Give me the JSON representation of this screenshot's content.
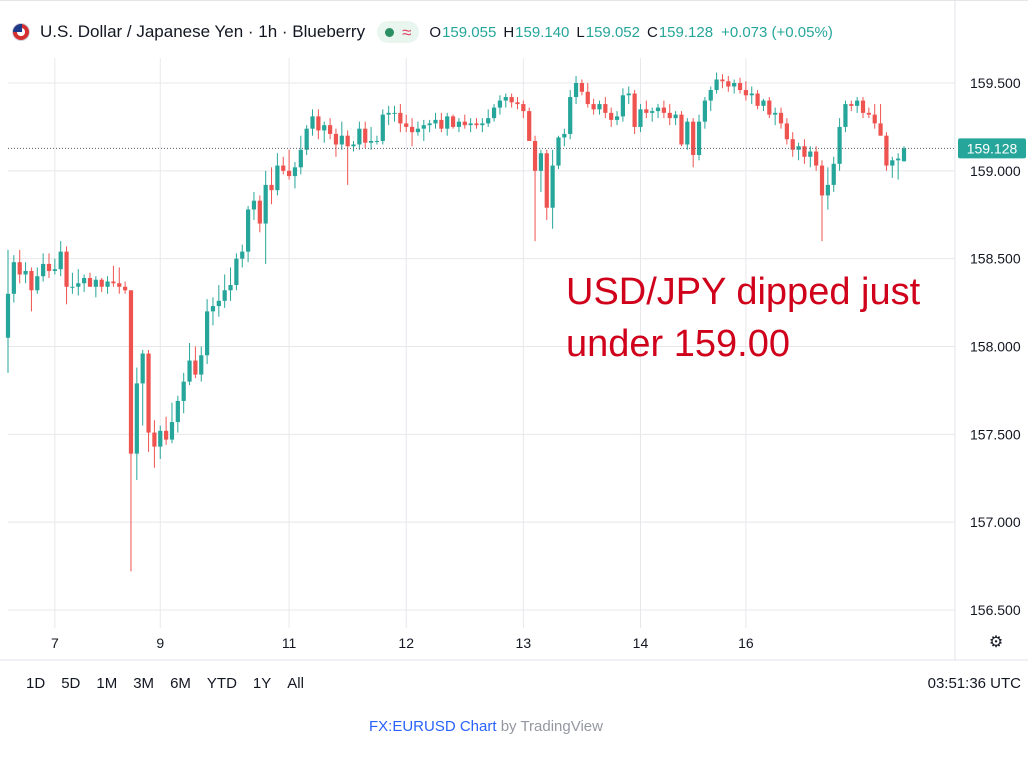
{
  "header": {
    "title": "U.S. Dollar / Japanese Yen · 1h · Blueberry",
    "flag_icon": "us-flag-icon",
    "status_icon": "live-dot-icon",
    "wave_icon": "wave-icon",
    "ohlc": {
      "o_label": "O",
      "o_value": "159.055",
      "h_label": "H",
      "h_value": "159.140",
      "l_label": "L",
      "l_value": "159.052",
      "c_label": "C",
      "c_value": "159.128",
      "change": "+0.073 (+0.05%)"
    }
  },
  "annotation": "USD/JPY dipped just under 159.00",
  "toolbar": {
    "timeframes": [
      "1D",
      "5D",
      "1M",
      "3M",
      "6M",
      "YTD",
      "1Y",
      "All"
    ],
    "clock": "03:51:36 UTC"
  },
  "settings_icon": "settings-icon",
  "attribution": {
    "link_text": "FX:EURUSD Chart",
    "by_text": " by TradingView"
  },
  "colors": {
    "up": "#26a69a",
    "down": "#ef5350",
    "grid": "#e8e8ec",
    "annotation": "#d0021b",
    "price_label": "#26a69a"
  },
  "chart_data": {
    "type": "candlestick",
    "title": "U.S. Dollar / Japanese Yen · 1h · Blueberry",
    "ylim": [
      156.3,
      159.8
    ],
    "y_ticks": [
      "159.500",
      "159.000",
      "158.500",
      "158.000",
      "157.500",
      "157.000",
      "156.500"
    ],
    "y_tick_values": [
      159.5,
      159.0,
      158.5,
      158.0,
      157.5,
      157.0,
      156.5
    ],
    "x_ticks": [
      "7",
      "9",
      "11",
      "12",
      "13",
      "14",
      "16"
    ],
    "last_price_label": "159.128",
    "last_price": 159.128,
    "grid": true,
    "candles": [
      [
        158.05,
        158.55,
        157.85,
        158.3
      ],
      [
        158.3,
        158.52,
        158.25,
        158.48
      ],
      [
        158.48,
        158.55,
        158.36,
        158.41
      ],
      [
        158.41,
        158.48,
        158.36,
        158.43
      ],
      [
        158.43,
        158.45,
        158.2,
        158.32
      ],
      [
        158.32,
        158.45,
        158.3,
        158.4
      ],
      [
        158.4,
        158.53,
        158.37,
        158.47
      ],
      [
        158.47,
        158.53,
        158.39,
        158.43
      ],
      [
        158.43,
        158.5,
        158.41,
        158.44
      ],
      [
        158.44,
        158.6,
        158.4,
        158.54
      ],
      [
        158.54,
        158.57,
        158.24,
        158.34
      ],
      [
        158.34,
        158.42,
        158.3,
        158.34
      ],
      [
        158.34,
        158.44,
        158.29,
        158.36
      ],
      [
        158.36,
        158.41,
        158.31,
        158.39
      ],
      [
        158.39,
        158.42,
        158.34,
        158.34
      ],
      [
        158.34,
        158.4,
        158.28,
        158.38
      ],
      [
        158.38,
        158.39,
        158.31,
        158.34
      ],
      [
        158.34,
        158.4,
        158.3,
        158.37
      ],
      [
        158.37,
        158.46,
        158.34,
        158.36
      ],
      [
        158.36,
        158.45,
        158.3,
        158.34
      ],
      [
        158.34,
        158.37,
        158.3,
        158.32
      ],
      [
        158.32,
        158.32,
        156.72,
        157.39
      ],
      [
        157.39,
        157.88,
        157.24,
        157.79
      ],
      [
        157.79,
        157.98,
        157.55,
        157.96
      ],
      [
        157.96,
        157.98,
        157.4,
        157.51
      ],
      [
        157.51,
        157.58,
        157.31,
        157.43
      ],
      [
        157.43,
        157.55,
        157.36,
        157.52
      ],
      [
        157.52,
        157.6,
        157.44,
        157.47
      ],
      [
        157.47,
        157.68,
        157.45,
        157.57
      ],
      [
        157.57,
        157.72,
        157.51,
        157.69
      ],
      [
        157.69,
        157.85,
        157.62,
        157.8
      ],
      [
        157.8,
        158.02,
        157.78,
        157.92
      ],
      [
        157.92,
        158.0,
        157.82,
        157.84
      ],
      [
        157.84,
        158.0,
        157.8,
        157.95
      ],
      [
        157.95,
        158.27,
        157.9,
        158.2
      ],
      [
        158.2,
        158.28,
        158.12,
        158.23
      ],
      [
        158.23,
        158.35,
        158.17,
        158.26
      ],
      [
        158.26,
        158.41,
        158.22,
        158.32
      ],
      [
        158.32,
        158.45,
        158.26,
        158.35
      ],
      [
        158.35,
        158.53,
        158.32,
        158.5
      ],
      [
        158.5,
        158.58,
        158.45,
        158.54
      ],
      [
        158.54,
        158.8,
        158.48,
        158.78
      ],
      [
        158.78,
        158.88,
        158.72,
        158.83
      ],
      [
        158.83,
        158.86,
        158.65,
        158.7
      ],
      [
        158.7,
        159.0,
        158.47,
        158.92
      ],
      [
        158.92,
        159.02,
        158.81,
        158.89
      ],
      [
        158.89,
        159.1,
        158.86,
        159.03
      ],
      [
        159.03,
        159.08,
        158.98,
        159.0
      ],
      [
        159.0,
        159.12,
        158.95,
        158.97
      ],
      [
        158.97,
        159.05,
        158.9,
        159.02
      ],
      [
        159.02,
        159.2,
        158.98,
        159.12
      ],
      [
        159.12,
        159.26,
        159.09,
        159.24
      ],
      [
        159.24,
        159.35,
        159.2,
        159.31
      ],
      [
        159.31,
        159.35,
        159.18,
        159.23
      ],
      [
        159.23,
        159.28,
        159.16,
        159.26
      ],
      [
        159.26,
        159.3,
        159.18,
        159.21
      ],
      [
        159.21,
        159.24,
        159.08,
        159.15
      ],
      [
        159.15,
        159.28,
        159.12,
        159.2
      ],
      [
        159.2,
        159.23,
        158.92,
        159.14
      ],
      [
        159.14,
        159.17,
        159.11,
        159.15
      ],
      [
        159.15,
        159.28,
        159.12,
        159.24
      ],
      [
        159.24,
        159.28,
        159.13,
        159.16
      ],
      [
        159.16,
        159.25,
        159.12,
        159.17
      ],
      [
        159.17,
        159.2,
        159.15,
        159.17
      ],
      [
        159.17,
        159.35,
        159.15,
        159.32
      ],
      [
        159.32,
        159.37,
        159.26,
        159.33
      ],
      [
        159.33,
        159.37,
        159.28,
        159.33
      ],
      [
        159.33,
        159.38,
        159.22,
        159.27
      ],
      [
        159.27,
        159.32,
        159.22,
        159.25
      ],
      [
        159.25,
        159.3,
        159.14,
        159.22
      ],
      [
        159.22,
        159.28,
        159.2,
        159.24
      ],
      [
        159.24,
        159.29,
        159.17,
        159.26
      ],
      [
        159.26,
        159.29,
        159.22,
        159.27
      ],
      [
        159.27,
        159.33,
        159.24,
        159.29
      ],
      [
        159.29,
        159.33,
        159.22,
        159.24
      ],
      [
        159.24,
        159.33,
        159.2,
        159.31
      ],
      [
        159.31,
        159.32,
        159.24,
        159.25
      ],
      [
        159.25,
        159.3,
        159.22,
        159.28
      ],
      [
        159.28,
        159.32,
        159.24,
        159.26
      ],
      [
        159.26,
        159.3,
        159.22,
        159.27
      ],
      [
        159.27,
        159.3,
        159.24,
        159.26
      ],
      [
        159.26,
        159.3,
        159.22,
        159.27
      ],
      [
        159.27,
        159.35,
        159.25,
        159.3
      ],
      [
        159.3,
        159.38,
        159.28,
        159.36
      ],
      [
        159.36,
        159.43,
        159.32,
        159.4
      ],
      [
        159.4,
        159.44,
        159.36,
        159.42
      ],
      [
        159.42,
        159.44,
        159.36,
        159.39
      ],
      [
        159.39,
        159.42,
        159.35,
        159.38
      ],
      [
        159.38,
        159.4,
        159.3,
        159.34
      ],
      [
        159.34,
        159.36,
        159.2,
        159.17
      ],
      [
        159.17,
        159.2,
        158.6,
        159.0
      ],
      [
        159.0,
        159.12,
        158.88,
        159.1
      ],
      [
        159.1,
        159.12,
        158.72,
        158.79
      ],
      [
        158.79,
        159.12,
        158.67,
        159.03
      ],
      [
        159.03,
        159.2,
        159.01,
        159.19
      ],
      [
        159.19,
        159.24,
        159.14,
        159.21
      ],
      [
        159.21,
        159.46,
        159.18,
        159.42
      ],
      [
        159.42,
        159.54,
        159.38,
        159.5
      ],
      [
        159.5,
        159.52,
        159.43,
        159.45
      ],
      [
        159.45,
        159.5,
        159.36,
        159.38
      ],
      [
        159.38,
        159.41,
        159.32,
        159.35
      ],
      [
        159.35,
        159.4,
        159.32,
        159.38
      ],
      [
        159.38,
        159.42,
        159.3,
        159.33
      ],
      [
        159.33,
        159.36,
        159.25,
        159.29
      ],
      [
        159.29,
        159.34,
        159.26,
        159.31
      ],
      [
        159.31,
        159.47,
        159.28,
        159.43
      ],
      [
        159.43,
        159.48,
        159.38,
        159.44
      ],
      [
        159.44,
        159.46,
        159.21,
        159.25
      ],
      [
        159.25,
        159.38,
        159.22,
        159.35
      ],
      [
        159.35,
        159.4,
        159.3,
        159.33
      ],
      [
        159.33,
        159.36,
        159.28,
        159.34
      ],
      [
        159.34,
        159.38,
        159.3,
        159.36
      ],
      [
        159.36,
        159.4,
        159.3,
        159.33
      ],
      [
        159.33,
        159.38,
        159.26,
        159.3
      ],
      [
        159.3,
        159.34,
        159.26,
        159.32
      ],
      [
        159.32,
        159.34,
        159.14,
        159.15
      ],
      [
        159.15,
        159.3,
        159.12,
        159.28
      ],
      [
        159.28,
        159.3,
        159.02,
        159.09
      ],
      [
        159.09,
        159.32,
        159.06,
        159.28
      ],
      [
        159.28,
        159.42,
        159.24,
        159.4
      ],
      [
        159.4,
        159.48,
        159.34,
        159.46
      ],
      [
        159.46,
        159.56,
        159.44,
        159.52
      ],
      [
        159.52,
        159.55,
        159.47,
        159.51
      ],
      [
        159.51,
        159.54,
        159.45,
        159.48
      ],
      [
        159.48,
        159.52,
        159.44,
        159.5
      ],
      [
        159.5,
        159.53,
        159.44,
        159.46
      ],
      [
        159.46,
        159.51,
        159.4,
        159.43
      ],
      [
        159.43,
        159.48,
        159.38,
        159.44
      ],
      [
        159.44,
        159.46,
        159.35,
        159.37
      ],
      [
        159.37,
        159.41,
        159.34,
        159.4
      ],
      [
        159.4,
        159.42,
        159.3,
        159.32
      ],
      [
        159.32,
        159.36,
        159.26,
        159.33
      ],
      [
        159.33,
        159.36,
        159.24,
        159.27
      ],
      [
        159.27,
        159.3,
        159.15,
        159.18
      ],
      [
        159.18,
        159.22,
        159.08,
        159.12
      ],
      [
        159.12,
        159.16,
        159.06,
        159.14
      ],
      [
        159.14,
        159.18,
        159.04,
        159.08
      ],
      [
        159.08,
        159.14,
        159.02,
        159.11
      ],
      [
        159.11,
        159.14,
        159.0,
        159.03
      ],
      [
        159.03,
        159.06,
        158.6,
        158.86
      ],
      [
        158.86,
        159.02,
        158.78,
        158.92
      ],
      [
        158.92,
        159.08,
        158.88,
        159.04
      ],
      [
        159.04,
        159.3,
        159.0,
        159.25
      ],
      [
        159.25,
        159.4,
        159.22,
        159.38
      ],
      [
        159.38,
        159.4,
        159.34,
        159.37
      ],
      [
        159.37,
        159.42,
        159.33,
        159.4
      ],
      [
        159.4,
        159.42,
        159.3,
        159.33
      ],
      [
        159.33,
        159.36,
        159.3,
        159.32
      ],
      [
        159.32,
        159.38,
        159.24,
        159.27
      ],
      [
        159.27,
        159.38,
        159.2,
        159.2
      ],
      [
        159.2,
        159.22,
        159.0,
        159.03
      ],
      [
        159.03,
        159.08,
        158.96,
        159.06
      ],
      [
        159.06,
        159.1,
        158.95,
        159.07
      ],
      [
        159.055,
        159.14,
        159.052,
        159.128
      ]
    ],
    "x_tick_candle_index": [
      8,
      26,
      48,
      68,
      88,
      108,
      126
    ]
  }
}
